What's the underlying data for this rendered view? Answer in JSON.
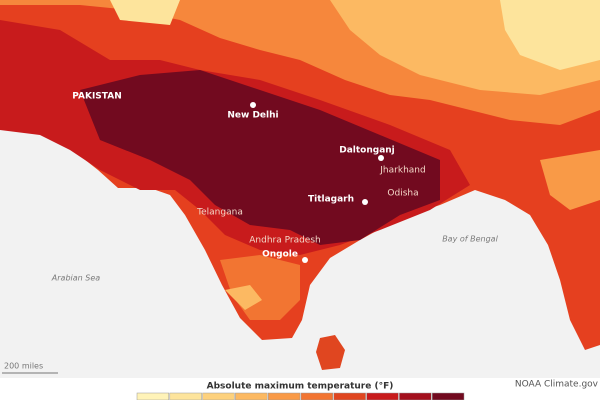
{
  "map": {
    "labels": {
      "pakistan": "PAKISTAN",
      "new_delhi": "New Delhi",
      "daltonganj": "Daltonganj",
      "jharkhand": "Jharkhand",
      "odisha": "Odisha",
      "titlagarh": "Titlagarh",
      "telangana": "Telangana",
      "andhra_pradesh": "Andhra Pradesh",
      "ongole": "Ongole",
      "bay_of_bengal": "Bay of Bengal",
      "arabian_sea": "Arabian Sea"
    },
    "scale_bar": "200 miles",
    "legend": {
      "title": "Absolute maximum temperature (°F)",
      "colors": [
        "#fff3b8",
        "#fde49c",
        "#fdd17d",
        "#fcb962",
        "#f99a47",
        "#f27532",
        "#e04620",
        "#c81b1c",
        "#a3101d",
        "#720a1f"
      ]
    },
    "credit": "NOAA Climate.gov"
  }
}
